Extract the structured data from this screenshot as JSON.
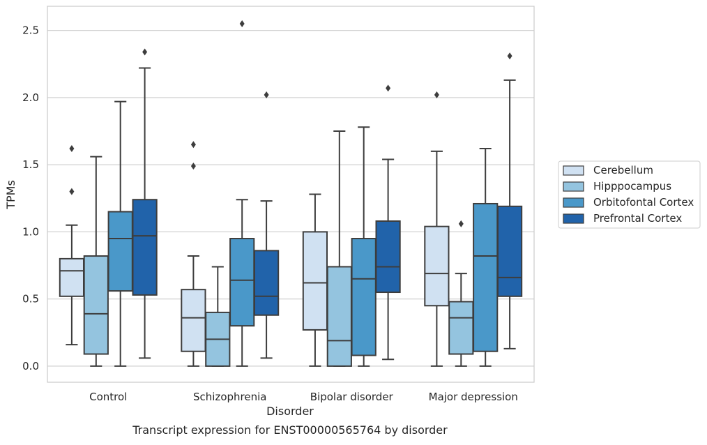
{
  "chart_data": {
    "type": "box",
    "title": "",
    "caption": "Transcript expression for ENST00000565764 by disorder",
    "xlabel": "Disorder",
    "ylabel": "TPMs",
    "ylim": [
      -0.12,
      2.68
    ],
    "yticks": [
      "0.0",
      "0.5",
      "1.0",
      "1.5",
      "2.0",
      "2.5"
    ],
    "ytick_values": [
      0.0,
      0.5,
      1.0,
      1.5,
      2.0,
      2.5
    ],
    "grid": "horizontal",
    "legend_position": "right",
    "categories": [
      "Control",
      "Schizophrenia",
      "Bipolar disorder",
      "Major depression"
    ],
    "series": [
      {
        "name": "Cerebellum",
        "color": "#d0e1f2",
        "boxes": [
          {
            "whisker_low": 0.16,
            "q1": 0.52,
            "median": 0.71,
            "q3": 0.8,
            "whisker_high": 1.05,
            "outliers": [
              1.3,
              1.62
            ]
          },
          {
            "whisker_low": 0.0,
            "q1": 0.11,
            "median": 0.36,
            "q3": 0.57,
            "whisker_high": 0.82,
            "outliers": [
              1.49,
              1.65
            ]
          },
          {
            "whisker_low": 0.0,
            "q1": 0.27,
            "median": 0.62,
            "q3": 1.0,
            "whisker_high": 1.28,
            "outliers": []
          },
          {
            "whisker_low": 0.0,
            "q1": 0.45,
            "median": 0.69,
            "q3": 1.04,
            "whisker_high": 1.6,
            "outliers": [
              2.02
            ]
          }
        ]
      },
      {
        "name": "Hipppocampus",
        "color": "#94c4df",
        "boxes": [
          {
            "whisker_low": 0.0,
            "q1": 0.09,
            "median": 0.39,
            "q3": 0.82,
            "whisker_high": 1.56,
            "outliers": []
          },
          {
            "whisker_low": 0.0,
            "q1": 0.0,
            "median": 0.2,
            "q3": 0.4,
            "whisker_high": 0.74,
            "outliers": []
          },
          {
            "whisker_low": 0.0,
            "q1": 0.0,
            "median": 0.19,
            "q3": 0.74,
            "whisker_high": 1.75,
            "outliers": []
          },
          {
            "whisker_low": 0.0,
            "q1": 0.09,
            "median": 0.36,
            "q3": 0.48,
            "whisker_high": 0.69,
            "outliers": [
              1.06
            ]
          }
        ]
      },
      {
        "name": "Orbitofontal Cortex",
        "color": "#4a98c9",
        "boxes": [
          {
            "whisker_low": 0.0,
            "q1": 0.56,
            "median": 0.95,
            "q3": 1.15,
            "whisker_high": 1.97,
            "outliers": []
          },
          {
            "whisker_low": 0.0,
            "q1": 0.3,
            "median": 0.64,
            "q3": 0.95,
            "whisker_high": 1.24,
            "outliers": [
              2.55
            ]
          },
          {
            "whisker_low": 0.0,
            "q1": 0.08,
            "median": 0.65,
            "q3": 0.95,
            "whisker_high": 1.78,
            "outliers": []
          },
          {
            "whisker_low": 0.0,
            "q1": 0.11,
            "median": 0.82,
            "q3": 1.21,
            "whisker_high": 1.62,
            "outliers": []
          }
        ]
      },
      {
        "name": "Prefrontal Cortex",
        "color": "#2163aa",
        "boxes": [
          {
            "whisker_low": 0.06,
            "q1": 0.53,
            "median": 0.97,
            "q3": 1.24,
            "whisker_high": 2.22,
            "outliers": [
              2.34
            ]
          },
          {
            "whisker_low": 0.06,
            "q1": 0.38,
            "median": 0.52,
            "q3": 0.86,
            "whisker_high": 1.23,
            "outliers": [
              2.02
            ]
          },
          {
            "whisker_low": 0.05,
            "q1": 0.55,
            "median": 0.74,
            "q3": 1.08,
            "whisker_high": 1.54,
            "outliers": [
              2.07
            ]
          },
          {
            "whisker_low": 0.13,
            "q1": 0.52,
            "median": 0.66,
            "q3": 1.19,
            "whisker_high": 2.13,
            "outliers": [
              2.31
            ]
          }
        ]
      }
    ]
  }
}
